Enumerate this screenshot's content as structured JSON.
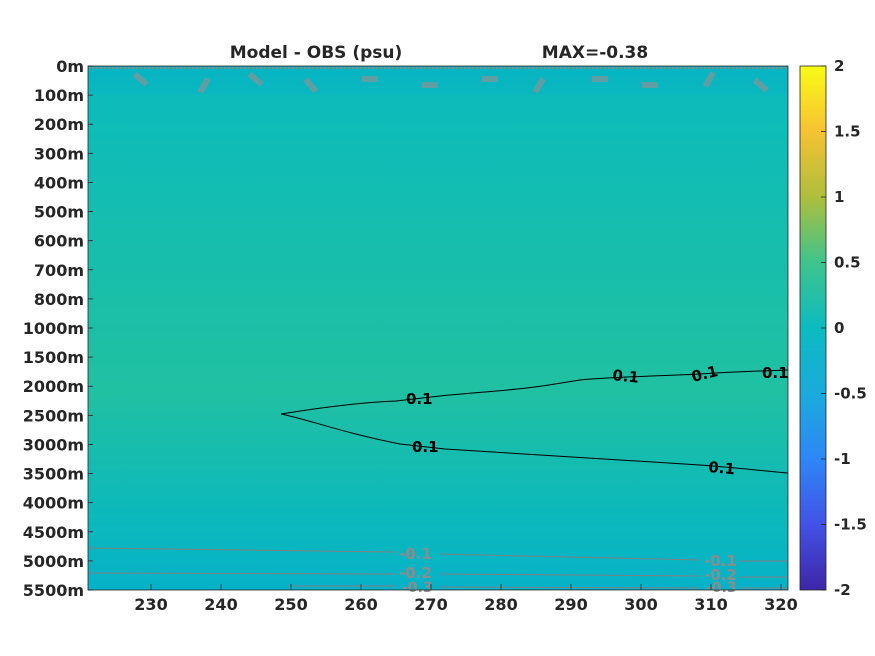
{
  "chart_data": {
    "type": "heatmap",
    "title_left": "Model - OBS (psu)",
    "title_right": "MAX=-0.38",
    "xlim": [
      221,
      321
    ],
    "x_ticks": [
      230,
      240,
      250,
      260,
      270,
      280,
      290,
      300,
      310,
      320
    ],
    "y_ticks": [
      "0m",
      "100m",
      "200m",
      "300m",
      "400m",
      "500m",
      "600m",
      "700m",
      "800m",
      "1000m",
      "1500m",
      "2000m",
      "2500m",
      "3000m",
      "3500m",
      "4000m",
      "4500m",
      "5000m",
      "5500m"
    ],
    "colorbar": {
      "min": -2,
      "max": 2,
      "ticks": [
        "2",
        "1.5",
        "1",
        "0.5",
        "0",
        "-0.5",
        "-1",
        "-1.5",
        "-2"
      ],
      "colormap": "parula"
    },
    "field_colors": {
      "near_surface": "#06b5c2",
      "upper": "#0bbbbb",
      "mid_depth": "#1bbfa8",
      "tongue": "#20c0a2",
      "lower": "#0ab8bd",
      "bottom": "#06b2c8"
    },
    "contours": [
      {
        "level": "0.1",
        "color": "#000000",
        "labels": [
          "0.1",
          "0.1",
          "0.1",
          "0.1",
          "0.1",
          "0.1",
          "0.1"
        ]
      },
      {
        "level": "-0.1",
        "color": "#808080",
        "labels": [
          "-0.1",
          "-0.1"
        ]
      },
      {
        "level": "-0.2",
        "color": "#808080",
        "labels": [
          "-0.2",
          "-0.2"
        ]
      },
      {
        "level": "-0.3",
        "color": "#808080",
        "labels": [
          "-0.3",
          "-0.3"
        ]
      }
    ]
  }
}
